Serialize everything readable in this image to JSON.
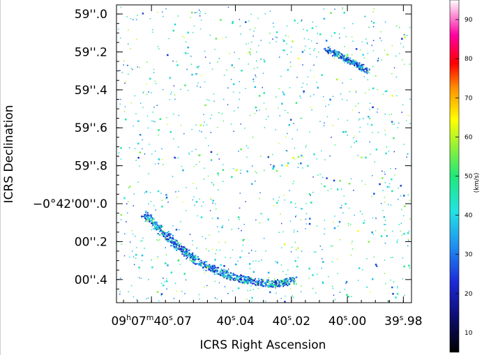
{
  "chart_data": {
    "type": "scatter",
    "title": "",
    "xlabel": "ICRS Right Ascension",
    "ylabel": "ICRS Declination",
    "x_ticks": [
      {
        "sec": 40.07,
        "parts": [
          "09",
          "h",
          "07",
          "m",
          "40",
          "s",
          ".07"
        ]
      },
      {
        "sec": 40.04,
        "parts": [
          "",
          "",
          "",
          "",
          "40",
          "s",
          ".04"
        ]
      },
      {
        "sec": 40.02,
        "parts": [
          "",
          "",
          "",
          "",
          "40",
          "s",
          ".02"
        ]
      },
      {
        "sec": 40.0,
        "parts": [
          "",
          "",
          "",
          "",
          "40",
          "s",
          ".00"
        ]
      },
      {
        "sec": 39.98,
        "parts": [
          "",
          "",
          "",
          "",
          "39",
          "s",
          ".98"
        ]
      }
    ],
    "y_ticks": [
      {
        "arcsec": -1.0,
        "label": "59''.0"
      },
      {
        "arcsec": -0.8,
        "label": "59''.2"
      },
      {
        "arcsec": -0.6,
        "label": "59''.4"
      },
      {
        "arcsec": -0.4,
        "label": "59''.6"
      },
      {
        "arcsec": -0.2,
        "label": "59''.8"
      },
      {
        "arcsec": 0.0,
        "label": "−0°42'00''.0"
      },
      {
        "arcsec": 0.2,
        "label": "00''.2"
      },
      {
        "arcsec": 0.4,
        "label": "00''.4"
      }
    ],
    "xlim_sec": [
      40.0825,
      39.9771
    ],
    "ylim_arcsec": [
      -1.048,
      0.522
    ],
    "colorbar": {
      "label": "(km/s)",
      "range": [
        5,
        95
      ],
      "ticks": [
        10,
        20,
        30,
        40,
        50,
        60,
        70,
        80,
        90
      ]
    },
    "structures": [
      {
        "name": "arc",
        "x_sec": [
          40.073,
          40.066,
          40.06,
          40.054,
          40.047,
          40.04,
          40.033,
          40.026,
          40.019
        ],
        "dec_arcsec": [
          0.05,
          0.15,
          0.23,
          0.3,
          0.35,
          0.39,
          0.41,
          0.42,
          0.4
        ]
      },
      {
        "name": "streak",
        "x_sec": [
          40.008,
          40.004,
          40.0,
          39.996,
          39.993
        ],
        "dec_arcsec": [
          -0.82,
          -0.79,
          -0.76,
          -0.73,
          -0.7
        ]
      }
    ]
  }
}
